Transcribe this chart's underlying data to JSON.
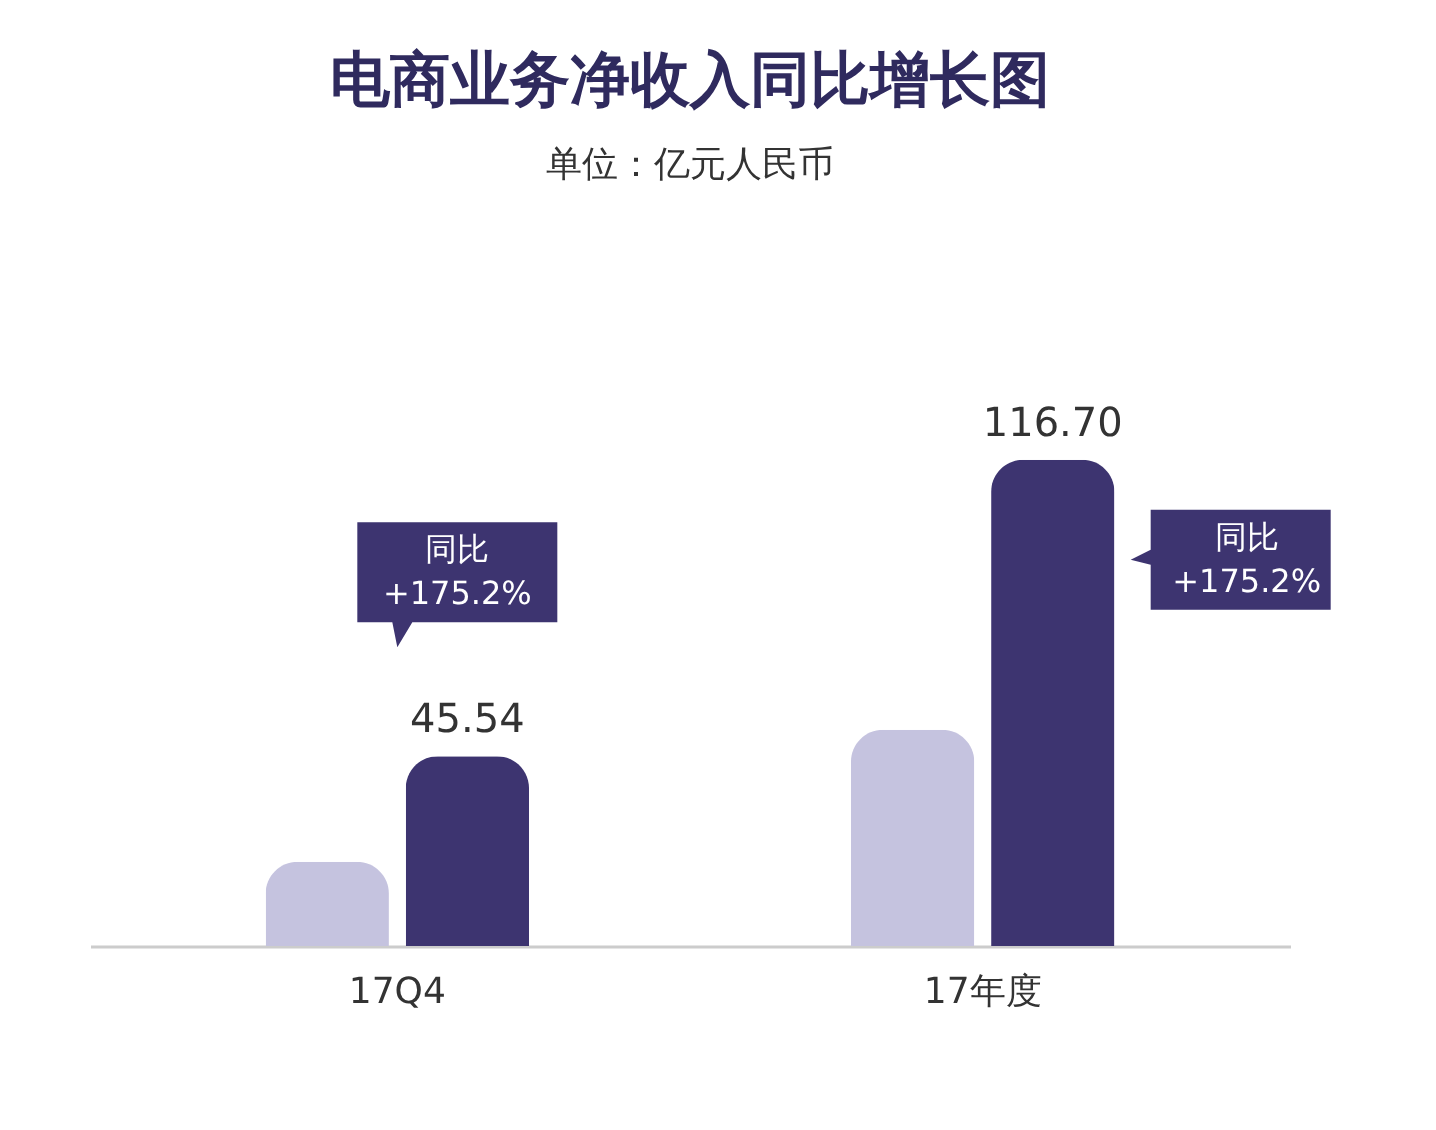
{
  "chart_data": {
    "type": "bar",
    "title": "电商业务净收入同比增长图",
    "subtitle": "单位：亿元人民币",
    "categories": [
      "17Q4",
      "17年度"
    ],
    "series": [
      {
        "color": "#c5c3df",
        "values": [
          20.2,
          51.9
        ]
      },
      {
        "color": "#3d3470",
        "values": [
          45.54,
          116.7
        ],
        "value_labels": [
          "45.54",
          "116.70"
        ]
      }
    ],
    "annotations": [
      "同比\n+175.2%",
      "同比\n+175.2%"
    ],
    "legend": false,
    "grid": false
  }
}
